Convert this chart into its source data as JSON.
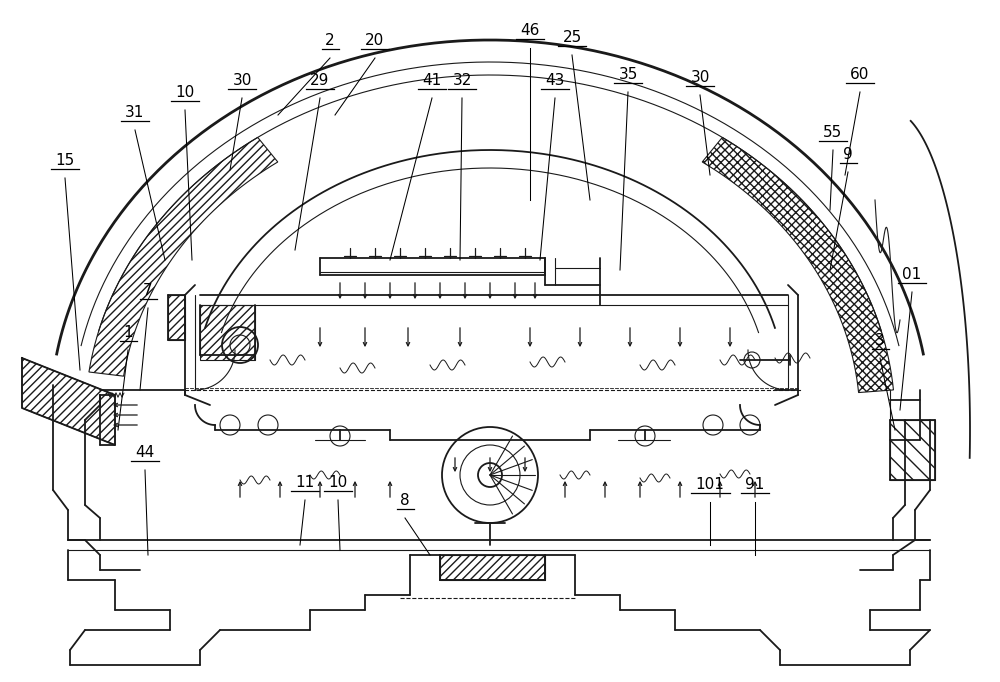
{
  "bg_color": "#ffffff",
  "line_color": "#1a1a1a",
  "fig_width": 10.0,
  "fig_height": 6.82,
  "dpi": 100,
  "labels": [
    [
      "2",
      330,
      48
    ],
    [
      "20",
      375,
      48
    ],
    [
      "41",
      432,
      88
    ],
    [
      "32",
      462,
      88
    ],
    [
      "46",
      530,
      38
    ],
    [
      "25",
      572,
      45
    ],
    [
      "43",
      555,
      88
    ],
    [
      "35",
      628,
      82
    ],
    [
      "30",
      242,
      88
    ],
    [
      "30",
      700,
      85
    ],
    [
      "29",
      320,
      88
    ],
    [
      "10",
      185,
      100
    ],
    [
      "31",
      135,
      120
    ],
    [
      "15",
      65,
      168
    ],
    [
      "60",
      860,
      82
    ],
    [
      "55",
      833,
      140
    ],
    [
      "9",
      848,
      162
    ],
    [
      "01",
      912,
      282
    ],
    [
      "7",
      148,
      298
    ],
    [
      "1",
      128,
      340
    ],
    [
      "3",
      880,
      348
    ],
    [
      "44",
      145,
      460
    ],
    [
      "11",
      305,
      490
    ],
    [
      "10",
      338,
      490
    ],
    [
      "8",
      405,
      508
    ],
    [
      "101",
      710,
      492
    ],
    [
      "91",
      755,
      492
    ]
  ]
}
